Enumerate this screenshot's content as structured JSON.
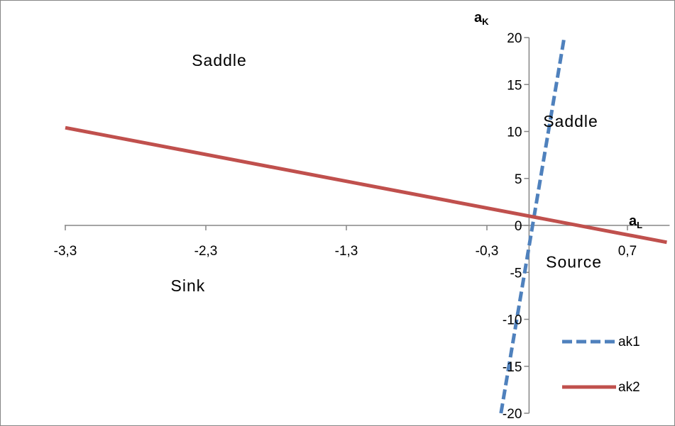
{
  "chart_data": {
    "type": "line",
    "x_axis": {
      "title_main": "a",
      "title_sub": "L",
      "range": [
        -3.3,
        1.0
      ],
      "ticks": [
        -3.3,
        -2.3,
        -1.3,
        -0.3,
        0.7
      ],
      "tick_labels": [
        "-3,3",
        "-2,3",
        "-1,3",
        "-0,3",
        "0,7"
      ]
    },
    "y_axis": {
      "title_main": "a",
      "title_sub": "K",
      "range": [
        -20,
        20
      ],
      "ticks": [
        20,
        15,
        10,
        5,
        0,
        -5,
        -10,
        -15,
        -20
      ],
      "tick_labels": [
        "20",
        "15",
        "10",
        "5",
        "0",
        "-5",
        "-10",
        "-15",
        "-20"
      ]
    },
    "series": [
      {
        "name": "ak1",
        "color": "#4F81BD",
        "style": "dashed",
        "x": [
          -0.2,
          0.25
        ],
        "y": [
          -20,
          20
        ]
      },
      {
        "name": "ak2",
        "color": "#C0504D",
        "style": "solid",
        "x": [
          -3.3,
          0.98
        ],
        "y": [
          10.4,
          -1.8
        ]
      }
    ],
    "annotations": [
      {
        "text": "Saddle",
        "x": -2.4,
        "y": 17
      },
      {
        "text": "Saddle",
        "x": 0.1,
        "y": 10.5
      },
      {
        "text": "Sink",
        "x": -2.55,
        "y": -7
      },
      {
        "text": "Source",
        "x": 0.12,
        "y": -4.5
      }
    ],
    "legend": {
      "position": "bottom-right",
      "entries": [
        "ak1",
        "ak2"
      ]
    },
    "grid": false
  }
}
